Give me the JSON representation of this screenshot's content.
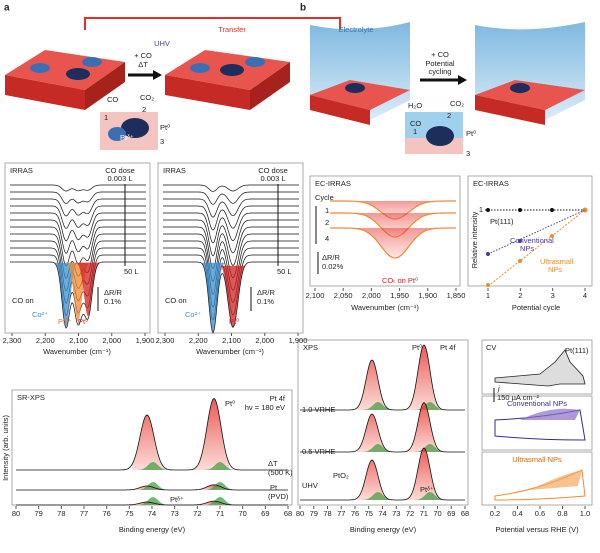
{
  "panels": {
    "a": "a",
    "b": "b"
  },
  "top_a": {
    "transfer": "Transfer",
    "step1": "+ CO",
    "step2": "ΔT",
    "env": "UHV",
    "co": "CO",
    "co2": "CO₂",
    "n1": "1",
    "n2": "2",
    "n3": "3",
    "ptd": "Ptᵟ⁺",
    "pt0": "Pt⁰"
  },
  "top_b": {
    "electrolyte": "Electrolyte",
    "step1": "+ CO",
    "step2": "Potential",
    "step3": "cycling",
    "h2o": "H₂O",
    "co": "CO",
    "co2": "CO₂",
    "n1": "1",
    "n2": "2",
    "n3": "3",
    "pt0": "Pt⁰"
  },
  "irras_left": {
    "title": "IRRAS",
    "dose": "CO dose",
    "dose_start": "0.003 L",
    "dose_end": "50 L",
    "scale": "ΔR/R",
    "scale_value": "0.1%",
    "co_on": "CO on",
    "co2p": "Co²⁺",
    "ptd": "Ptᵟ⁺",
    "pt0": "Pt⁰",
    "xticks": [
      "2,300",
      "2,200",
      "2,100",
      "2,000",
      "1,900"
    ],
    "xlabel": "Wavenumber (cm⁻¹)"
  },
  "irras_right": {
    "title": "IRRAS",
    "dose": "CO dose",
    "dose_start": "0.003 L",
    "dose_end": "50 L",
    "scale": "ΔR/R",
    "scale_value": "0.1%",
    "co_on": "CO on",
    "co2p": "Co²⁺",
    "pt0": "Pt⁰",
    "xticks": [
      "2,300",
      "2,200",
      "2,100",
      "2,000",
      "1,900"
    ],
    "xlabel": "Wavenumber (cm⁻¹)"
  },
  "ec_irras_left": {
    "title": "EC-IRRAS",
    "cycle": "Cycle",
    "c1": "1",
    "c2": "2",
    "c4": "4",
    "scale": "ΔR/R",
    "scale_value": "0.02%",
    "co_on": "COₜ on Pt⁰",
    "xticks": [
      "2,100",
      "2,050",
      "2,000",
      "1,950",
      "1,900",
      "1,850"
    ],
    "xlabel": "Wavenumber (cm⁻¹)"
  },
  "ec_irras_right": {
    "title": "EC-IRRAS",
    "ylabel": "Relative intensity",
    "ytick": "1",
    "pt111": "Pt(111)",
    "conv1": "Conventional",
    "conv2": "NPs",
    "ultra1": "Ultrasmall",
    "ultra2": "NPs",
    "xticks": [
      "1",
      "2",
      "3",
      "4"
    ],
    "xlabel": "Potential cycle"
  },
  "sr_xps": {
    "title": "SR-XPS",
    "pt4f": "Pt 4f",
    "hv": "hν = 180 eV",
    "pt0": "Pt⁰",
    "ptd": "Ptᵟ⁺",
    "dt": "ΔT",
    "dt_temp": "(500 K)",
    "pt": "Pt",
    "pvd": "(PVD)",
    "ylabel": "Intensity (arb. units)",
    "xticks": [
      "80",
      "79",
      "78",
      "77",
      "76",
      "75",
      "74",
      "73",
      "72",
      "71",
      "70",
      "69",
      "68"
    ],
    "xlabel": "Binding energy (eV)"
  },
  "xps_b": {
    "title": "XPS",
    "pt0": "Pt⁰",
    "pt4f": "Pt 4f",
    "v1": "1.0 VRHE",
    "v05": "0.5 VRHE",
    "uhv": "UHV",
    "pto2": "PtO₂",
    "ptd": "Ptᵟ⁺",
    "xticks": [
      "80",
      "79",
      "78",
      "77",
      "76",
      "75",
      "74",
      "73",
      "72",
      "71",
      "70",
      "69",
      "68"
    ],
    "xlabel": "Binding energy (eV)"
  },
  "cv": {
    "title": "CV",
    "pt111": "Pt(111)",
    "j": "j",
    "scale": "150 µA cm⁻²",
    "conv": "Conventional NPs",
    "ultra": "Ultrasmall NPs",
    "xticks": [
      "0.2",
      "0.4",
      "0.6",
      "0.8",
      "1.0"
    ],
    "xlabel": "Potential versus RHE (V)"
  }
}
